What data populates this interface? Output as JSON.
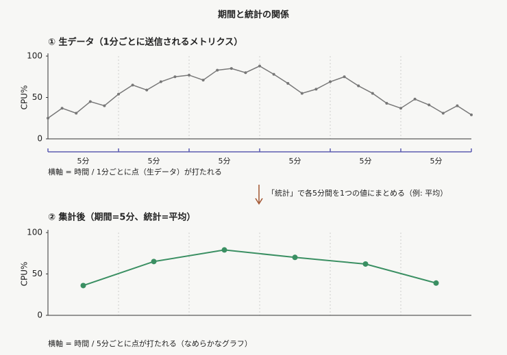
{
  "title": "期間と統計の関係",
  "annotation": "「統計」で各5分間を1つの値にまとめる（例: 平均）",
  "annotation_color": "#a0522d",
  "chart_data": [
    {
      "type": "line",
      "title": "① 生データ（1分ごとに送信されるメトリクス）",
      "ylabel": "CPU%",
      "x": [
        0,
        1,
        2,
        3,
        4,
        5,
        6,
        7,
        8,
        9,
        10,
        11,
        12,
        13,
        14,
        15,
        16,
        17,
        18,
        19,
        20,
        21,
        22,
        23,
        24,
        25,
        26,
        27,
        28,
        29,
        30
      ],
      "series": [
        {
          "color": "#777777",
          "values": [
            25,
            37,
            31,
            45,
            40,
            54,
            65,
            59,
            69,
            75,
            77,
            71,
            83,
            85,
            80,
            88,
            78,
            67,
            55,
            60,
            69,
            75,
            64,
            55,
            43,
            37,
            48,
            41,
            31,
            40,
            29
          ]
        }
      ],
      "xlim": [
        0,
        30
      ],
      "ylim": [
        0,
        100
      ],
      "yticks": [
        0,
        50,
        100
      ],
      "vgrid": [
        5,
        10,
        15,
        20,
        25
      ],
      "brackets": {
        "color": "#5b5bb0",
        "edges": [
          0,
          5,
          10,
          15,
          20,
          25,
          30
        ],
        "labels": [
          "5分",
          "5分",
          "5分",
          "5分",
          "5分",
          "5分"
        ]
      },
      "caption": "横軸 = 時間 / 1分ごとに点（生データ）が打たれる"
    },
    {
      "type": "line",
      "title": "② 集計後（期間=5分、統計=平均）",
      "ylabel": "CPU%",
      "x": [
        2.5,
        7.5,
        12.5,
        17.5,
        22.5,
        27.5
      ],
      "series": [
        {
          "color": "#3a8f62",
          "values": [
            36,
            65,
            79,
            70,
            62,
            39
          ]
        }
      ],
      "xlim": [
        0,
        30
      ],
      "ylim": [
        0,
        100
      ],
      "yticks": [
        0,
        50,
        100
      ],
      "vgrid": [
        5,
        10,
        15,
        20,
        25
      ],
      "caption": "横軸 = 時間 / 5分ごとに点が打たれる（なめらかなグラフ）"
    }
  ]
}
